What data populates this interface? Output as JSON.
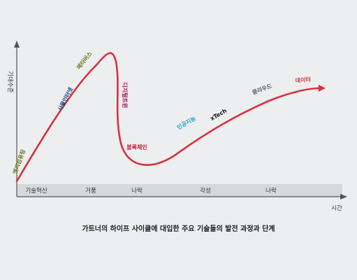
{
  "chart_data": {
    "type": "line",
    "title": "가트너의 하이프 사이클에 대입한 주요 기술들의 발전 과정과 단계",
    "xlabel": "시간",
    "ylabel": "기대수준",
    "stages": [
      "기술혁신",
      "거품",
      "나락",
      "각성",
      "나락"
    ],
    "technologies": [
      {
        "name": "엣지컴퓨팅",
        "color": "#6b7a1e"
      },
      {
        "name": "사물인터넷",
        "color": "#1f3f86"
      },
      {
        "name": "메타버스",
        "color": "#6b7a1e"
      },
      {
        "name": "디지털트윈",
        "color": "#a0165a"
      },
      {
        "name": "블록체인",
        "color": "#c81e3c"
      },
      {
        "name": "인공지능",
        "color": "#22a6c9"
      },
      {
        "name": "xTech",
        "color": "#111111"
      },
      {
        "name": "클라우드",
        "color": "#666666"
      },
      {
        "name": "데이터",
        "color": "#d6333d"
      }
    ],
    "grid": false,
    "legend": "none",
    "curve_color": "#d6333d"
  }
}
